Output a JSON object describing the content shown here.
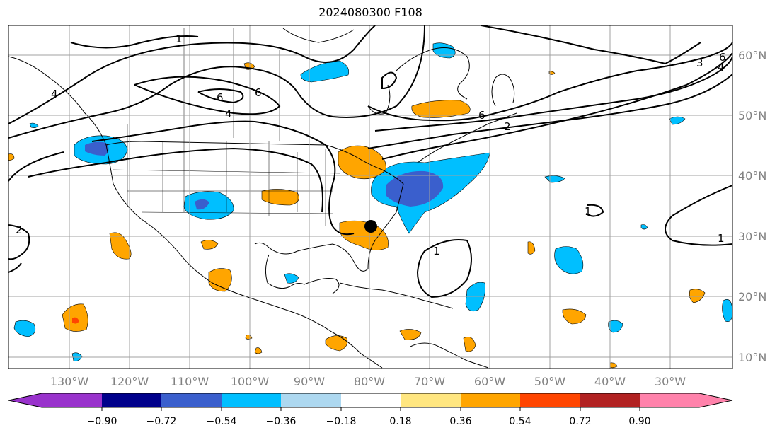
{
  "title": "2024080300 F108",
  "map": {
    "lon_ticks": [
      "130°W",
      "120°W",
      "110°W",
      "100°W",
      "90°W",
      "80°W",
      "70°W",
      "60°W",
      "50°W",
      "40°W",
      "30°W"
    ],
    "lat_ticks": [
      "10°N",
      "20°N",
      "30°N",
      "40°N",
      "50°N",
      "60°N"
    ],
    "contour_labels": [
      "1",
      "6",
      "4",
      "6",
      "1",
      "1",
      "1",
      "2",
      "3",
      "6",
      "4",
      "2",
      "6",
      "4"
    ],
    "marker": "storm-center-dot"
  },
  "colorbar": {
    "levels": [
      "−0.90",
      "−0.72",
      "−0.54",
      "−0.36",
      "−0.18",
      "0.18",
      "0.36",
      "0.54",
      "0.72",
      "0.90"
    ],
    "colors": [
      "#9932cc",
      "#00008b",
      "#3a5fcd",
      "#00bfff",
      "#add8f0",
      "#ffffff",
      "#ffe680",
      "#ffa500",
      "#ff4500",
      "#b22222",
      "#ff82ab"
    ]
  },
  "colors": {
    "grid": "#a0a0a0",
    "tick_text": "#808080",
    "negative_fill": "#00bfff",
    "positive_fill": "#ffa500"
  }
}
